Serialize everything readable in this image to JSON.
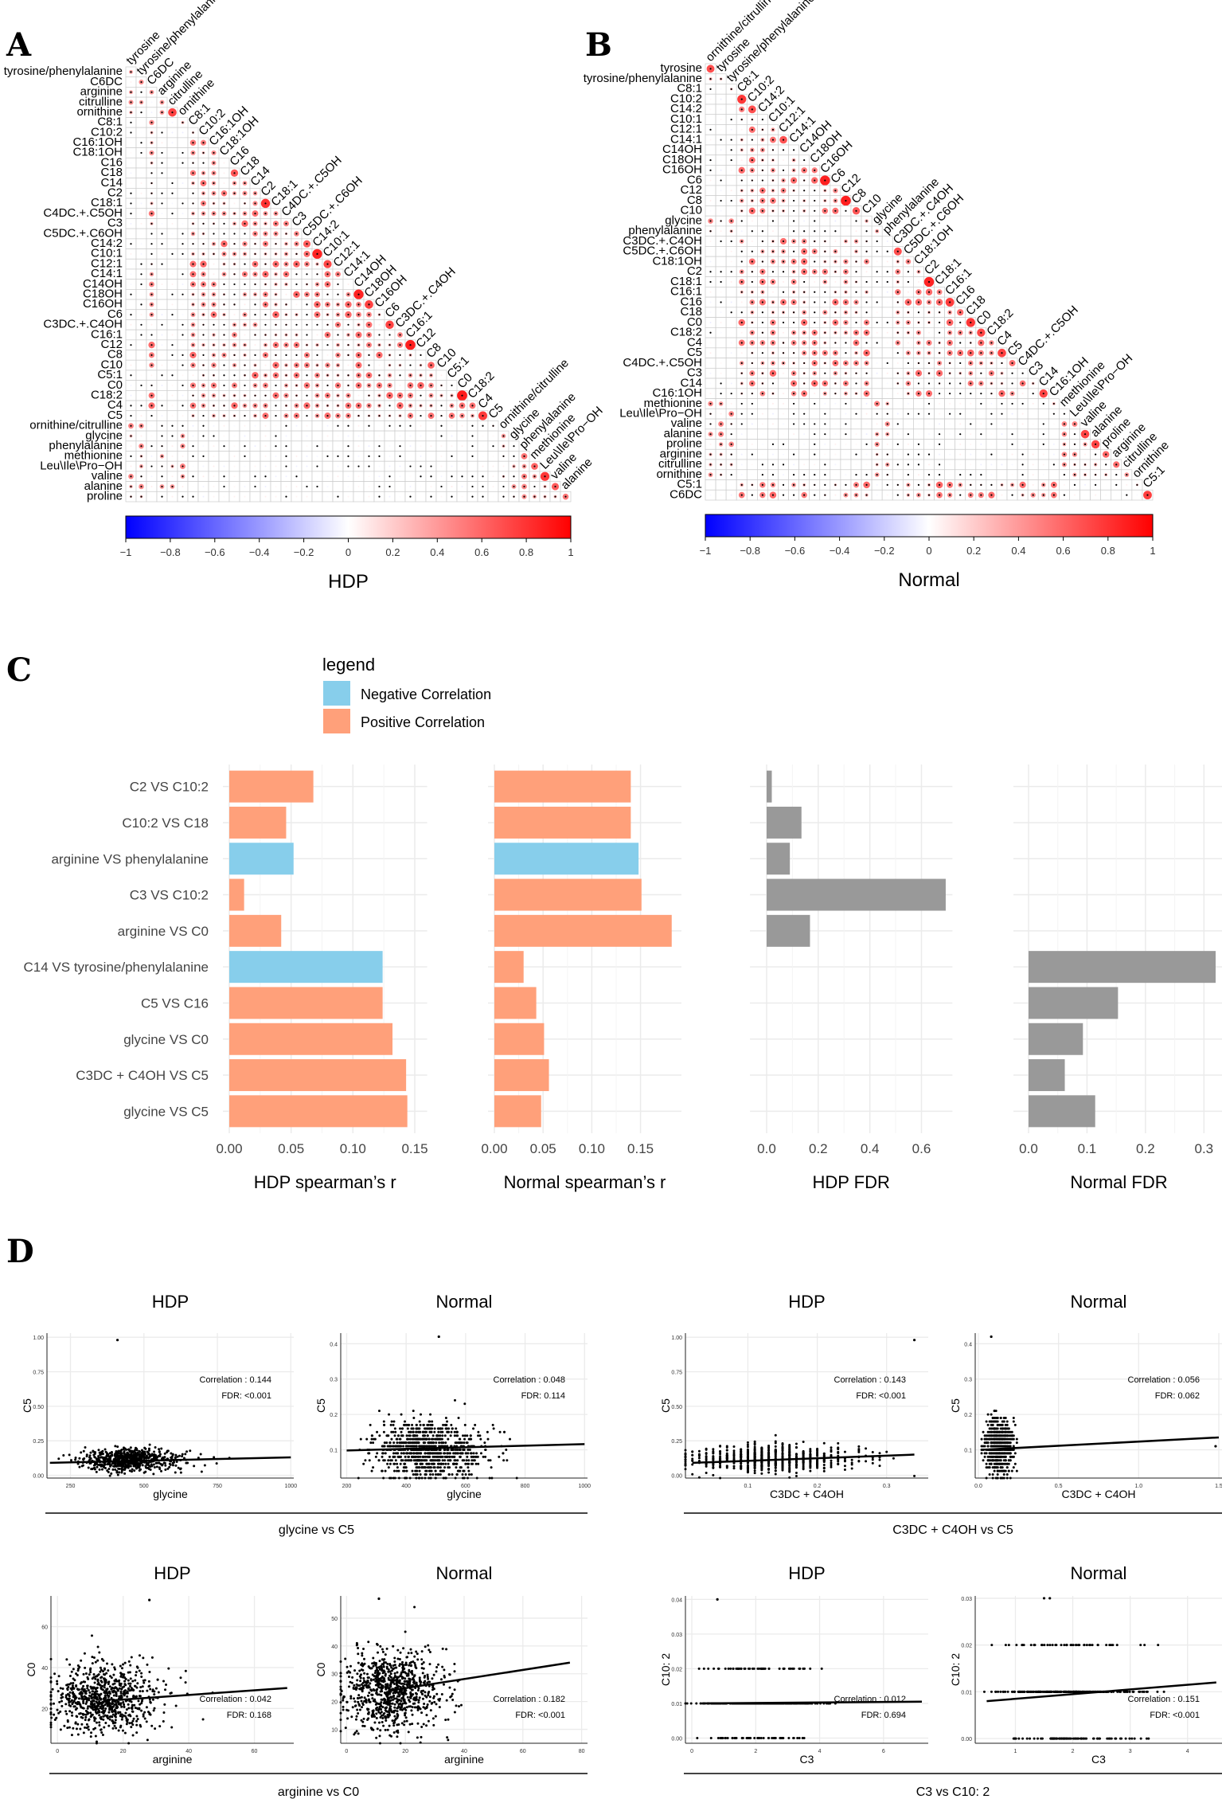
{
  "panels": {
    "a": "A",
    "b": "B",
    "c": "C",
    "d": "D"
  },
  "colors": {
    "negative": "#87CEEB",
    "positive": "#FFA07A",
    "fdr": "#999999",
    "cmap_low": "#0000FF",
    "cmap_mid": "#FFFFFF",
    "cmap_high": "#FF0000"
  },
  "matrix_a": {
    "title": "HDP",
    "variables": [
      "tyrosine",
      "tyrosine/phenylalanine",
      "C6DC",
      "arginine",
      "citrulline",
      "ornithine",
      "C8:1",
      "C10:2",
      "C16:1OH",
      "C18:1OH",
      "C16",
      "C18",
      "C14",
      "C2",
      "C18:1",
      "C4DC.+.C5OH",
      "C3",
      "C5DC.+.C6OH",
      "C14:2",
      "C10:1",
      "C12:1",
      "C14:1",
      "C14OH",
      "C18OH",
      "C16OH",
      "C6",
      "C3DC.+.C4OH",
      "C16:1",
      "C12",
      "C8",
      "C10",
      "C5:1",
      "C0",
      "C18:2",
      "C4",
      "C5",
      "ornithine/citrulline",
      "glycine",
      "phenylalanine",
      "methionine",
      "Leu\\Ile\\Pro−OH",
      "valine",
      "alanine",
      "proline"
    ],
    "colorbar_ticks": [
      "−1",
      "−0.8",
      "−0.6",
      "−0.4",
      "−0.2",
      "0",
      "0.2",
      "0.4",
      "0.6",
      "0.8",
      "1"
    ]
  },
  "matrix_b": {
    "title": "Normal",
    "variables": [
      "ornithine/citrulline",
      "tyrosine",
      "tyrosine/phenylalanine",
      "C8:1",
      "C10:2",
      "C14:2",
      "C10:1",
      "C12:1",
      "C14:1",
      "C14OH",
      "C18OH",
      "C16OH",
      "C6",
      "C12",
      "C8",
      "C10",
      "glycine",
      "phenylalanine",
      "C3DC.+.C4OH",
      "C5DC.+.C6OH",
      "C18:1OH",
      "C2",
      "C18:1",
      "C16:1",
      "C16",
      "C18",
      "C0",
      "C18:2",
      "C4",
      "C5",
      "C4DC.+.C5OH",
      "C3",
      "C14",
      "C16:1OH",
      "methionine",
      "Leu\\Ile\\Pro−OH",
      "valine",
      "alanine",
      "proline",
      "arginine",
      "citrulline",
      "ornithine",
      "C5:1",
      "C6DC"
    ],
    "colorbar_ticks": [
      "−1",
      "−0.8",
      "−0.6",
      "−0.4",
      "−0.2",
      "0",
      "0.2",
      "0.4",
      "0.6",
      "0.8",
      "1"
    ]
  },
  "legend": {
    "title": "legend",
    "negative": "Negative Correlation",
    "positive": "Positive Correlation"
  },
  "chart_data": [
    {
      "type": "bar",
      "id": "panel-c",
      "categories": [
        "C2 VS C10:2",
        "C10:2 VS C18",
        "arginine VS phenylalanine",
        "C3 VS C10:2",
        "arginine VS C0",
        "C14 VS tyrosine/phenylalanine",
        "C5 VS C16",
        "glycine VS C0",
        "C3DC + C4OH VS C5",
        "glycine VS C5"
      ],
      "facets": [
        {
          "title": "HDP spearman’s r",
          "xlim": [
            0,
            0.16
          ],
          "ticks": [
            "0.00",
            "0.05",
            "0.10",
            "0.15"
          ],
          "tick_values": [
            0,
            0.05,
            0.1,
            0.15
          ],
          "values": [
            0.068,
            0.046,
            0.052,
            0.012,
            0.042,
            0.124,
            0.124,
            0.132,
            0.143,
            0.144
          ],
          "sign": [
            "pos",
            "pos",
            "neg",
            "pos",
            "pos",
            "neg",
            "pos",
            "pos",
            "pos",
            "pos"
          ]
        },
        {
          "title": "Normal spearman’s r",
          "xlim": [
            0,
            0.192
          ],
          "ticks": [
            "0.00",
            "0.05",
            "0.10",
            "0.15"
          ],
          "tick_values": [
            0,
            0.05,
            0.1,
            0.15
          ],
          "values": [
            0.14,
            0.14,
            0.148,
            0.151,
            0.182,
            0.03,
            0.043,
            0.051,
            0.056,
            0.048
          ],
          "sign": [
            "pos",
            "pos",
            "neg",
            "pos",
            "pos",
            "pos",
            "pos",
            "pos",
            "pos",
            "pos"
          ]
        },
        {
          "title": "HDP FDR",
          "xlim": [
            -0.04,
            0.72
          ],
          "ticks": [
            "0.0",
            "0.2",
            "0.4",
            "0.6"
          ],
          "tick_values": [
            0,
            0.2,
            0.4,
            0.6
          ],
          "values": [
            0.02,
            0.135,
            0.09,
            0.694,
            0.168,
            0,
            0,
            0,
            0,
            0
          ],
          "sign": "fdr"
        },
        {
          "title": "Normal FDR",
          "xlim": [
            -0.015,
            0.335
          ],
          "ticks": [
            "0.0",
            "0.1",
            "0.2",
            "0.3"
          ],
          "tick_values": [
            0,
            0.1,
            0.2,
            0.3
          ],
          "values": [
            0,
            0,
            0,
            0,
            0,
            0.32,
            0.153,
            0.093,
            0.062,
            0.114
          ],
          "sign": "fdr"
        }
      ]
    },
    {
      "type": "scatter",
      "id": "panel-d",
      "groups": [
        {
          "caption": "glycine vs C5",
          "plots": [
            {
              "title": "HDP",
              "xlabel": "glycine",
              "ylabel": "C5",
              "xlim": [
                170,
                1010
              ],
              "ylim": [
                -0.02,
                1.03
              ],
              "xticks": [
                250,
                500,
                750,
                1000
              ],
              "yticks": [
                0,
                0.25,
                0.5,
                0.75,
                1.0
              ],
              "yticklabels": [
                "0.00",
                "0.25",
                "0.50",
                "0.75",
                "1.00"
              ],
              "line": [
                [
                  180,
                  0.09
                ],
                [
                  1000,
                  0.13
                ]
              ],
              "cloud": {
                "xm": 400,
                "xs": 80,
                "ym": 0.11,
                "ys": 0.04,
                "n": 700
              },
              "outliers": [
                [
                  410,
                  0.98
                ]
              ],
              "correlation": "Correlation : 0.144",
              "fdr": "FDR: <0.001"
            },
            {
              "title": "Normal",
              "xlabel": "glycine",
              "ylabel": "C5",
              "xlim": [
                180,
                1010
              ],
              "ylim": [
                0.02,
                0.43
              ],
              "xticks": [
                200,
                400,
                600,
                800,
                1000
              ],
              "yticks": [
                0.1,
                0.2,
                0.3,
                0.4
              ],
              "yticklabels": [
                "0.1",
                "0.2",
                "0.3",
                "0.4"
              ],
              "line": [
                [
                  200,
                  0.098
                ],
                [
                  1000,
                  0.116
                ]
              ],
              "cloud": {
                "xm": 420,
                "xs": 90,
                "ym": 0.1,
                "ys": 0.04,
                "n": 900,
                "ystep": 0.01
              },
              "outliers": [
                [
                  510,
                  0.42
                ]
              ],
              "correlation": "Correlation : 0.048",
              "fdr": "FDR: 0.114"
            }
          ]
        },
        {
          "caption": "C3DC + C4OH vs C5",
          "plots": [
            {
              "title": "HDP",
              "xlabel": "C3DC + C4OH",
              "ylabel": "C5",
              "xlim": [
                0.01,
                0.36
              ],
              "ylim": [
                -0.02,
                1.03
              ],
              "xticks": [
                0.1,
                0.2,
                0.3
              ],
              "yticks": [
                0,
                0.25,
                0.5,
                0.75,
                1.0
              ],
              "yticklabels": [
                "0.00",
                "0.25",
                "0.50",
                "0.75",
                "1.00"
              ],
              "line": [
                [
                  0.02,
                  0.09
                ],
                [
                  0.34,
                  0.15
                ]
              ],
              "cloud": {
                "xm": 0.1,
                "xs": 0.055,
                "ym": 0.12,
                "ys": 0.045,
                "n": 700,
                "xstep": 0.01
              },
              "outliers": [
                [
                  0.34,
                  0.98
                ]
              ],
              "correlation": "Correlation : 0.143",
              "fdr": "FDR: <0.001"
            },
            {
              "title": "Normal",
              "xlabel": "C3DC + C4OH",
              "ylabel": "C5",
              "xlim": [
                -0.02,
                1.52
              ],
              "ylim": [
                0.02,
                0.43
              ],
              "xticks": [
                0,
                0.5,
                1.0,
                1.5
              ],
              "xticklabels": [
                "0.0",
                "0.5",
                "1.0",
                "1.5"
              ],
              "yticks": [
                0.1,
                0.2,
                0.3,
                0.4
              ],
              "yticklabels": [
                "0.1",
                "0.2",
                "0.3",
                "0.4"
              ],
              "line": [
                [
                  0.02,
                  0.1
                ],
                [
                  1.5,
                  0.135
                ]
              ],
              "cloud": {
                "xm": 0.1,
                "xs": 0.04,
                "ym": 0.11,
                "ys": 0.04,
                "n": 600,
                "xstep": 0.01,
                "ystep": 0.01
              },
              "outliers": [
                [
                  0.08,
                  0.42
                ],
                [
                  1.48,
                  0.11
                ]
              ],
              "correlation": "Correlation : 0.056",
              "fdr": "FDR: 0.062"
            }
          ]
        },
        {
          "caption": "arginine vs C0",
          "plots": [
            {
              "title": "HDP",
              "xlabel": "arginine",
              "ylabel": "C0",
              "xlim": [
                -2,
                72
              ],
              "ylim": [
                3,
                75
              ],
              "xticks": [
                0,
                20,
                40,
                60
              ],
              "yticks": [
                20,
                40,
                60
              ],
              "line": [
                [
                  17,
                  24
                ],
                [
                  70,
                  30
                ]
              ],
              "cloud": {
                "xm": 10,
                "xs": 8,
                "ym": 25,
                "ys": 8,
                "n": 800
              },
              "outliers": [
                [
                  28,
                  73
                ]
              ],
              "correlation": "Correlation : 0.042",
              "fdr": "FDR: 0.168"
            },
            {
              "title": "Normal",
              "xlabel": "arginine",
              "ylabel": "C0",
              "xlim": [
                -2,
                82
              ],
              "ylim": [
                5,
                58
              ],
              "xticks": [
                0,
                20,
                40,
                60,
                80
              ],
              "yticks": [
                10,
                20,
                30,
                40,
                50
              ],
              "line": [
                [
                  15,
                  24
                ],
                [
                  76,
                  34
                ]
              ],
              "cloud": {
                "xm": 10,
                "xs": 8,
                "ym": 24,
                "ys": 7,
                "n": 900
              },
              "outliers": [
                [
                  11,
                  57
                ]
              ],
              "correlation": "Correlation : 0.182",
              "fdr": "FDR: <0.001"
            }
          ]
        },
        {
          "caption": "C3 vs C10: 2",
          "plots": [
            {
              "title": "HDP",
              "xlabel": "C3",
              "ylabel": "C10: 2",
              "xlim": [
                -0.2,
                7.4
              ],
              "ylim": [
                -0.0015,
                0.041
              ],
              "xticks": [
                0,
                2,
                4,
                6
              ],
              "yticks": [
                0,
                0.01,
                0.02,
                0.03,
                0.04
              ],
              "yticklabels": [
                "0.00",
                "0.01",
                "0.02",
                "0.03",
                "0.04"
              ],
              "line": [
                [
                  0.3,
                  0.01
                ],
                [
                  7.2,
                  0.0105
                ]
              ],
              "cloud": {
                "xm": 1.5,
                "xs": 0.9,
                "levels": [
                  0,
                  0.01,
                  0.02
                ],
                "weights": [
                  0.15,
                  0.7,
                  0.15
                ],
                "n": 400
              },
              "outliers": [
                [
                  0.8,
                  0.04
                ]
              ],
              "correlation": "Correlation : 0.012",
              "fdr": "FDR: 0.694"
            },
            {
              "title": "Normal",
              "xlabel": "C3",
              "ylabel": "C10: 2",
              "xlim": [
                0.3,
                4.6
              ],
              "ylim": [
                -0.001,
                0.0305
              ],
              "xticks": [
                1,
                2,
                3,
                4
              ],
              "yticks": [
                0,
                0.01,
                0.02,
                0.03
              ],
              "yticklabels": [
                "0.00",
                "0.01",
                "0.02",
                "0.03"
              ],
              "line": [
                [
                  0.5,
                  0.008
                ],
                [
                  4.5,
                  0.012
                ]
              ],
              "cloud": {
                "xm": 1.6,
                "xs": 0.6,
                "levels": [
                  0,
                  0.01,
                  0.02
                ],
                "weights": [
                  0.2,
                  0.7,
                  0.1
                ],
                "n": 400
              },
              "outliers": [
                [
                  1.5,
                  0.03
                ],
                [
                  1.6,
                  0.03
                ]
              ],
              "correlation": "Correlation : 0.151",
              "fdr": "FDR: <0.001"
            }
          ]
        }
      ]
    }
  ]
}
